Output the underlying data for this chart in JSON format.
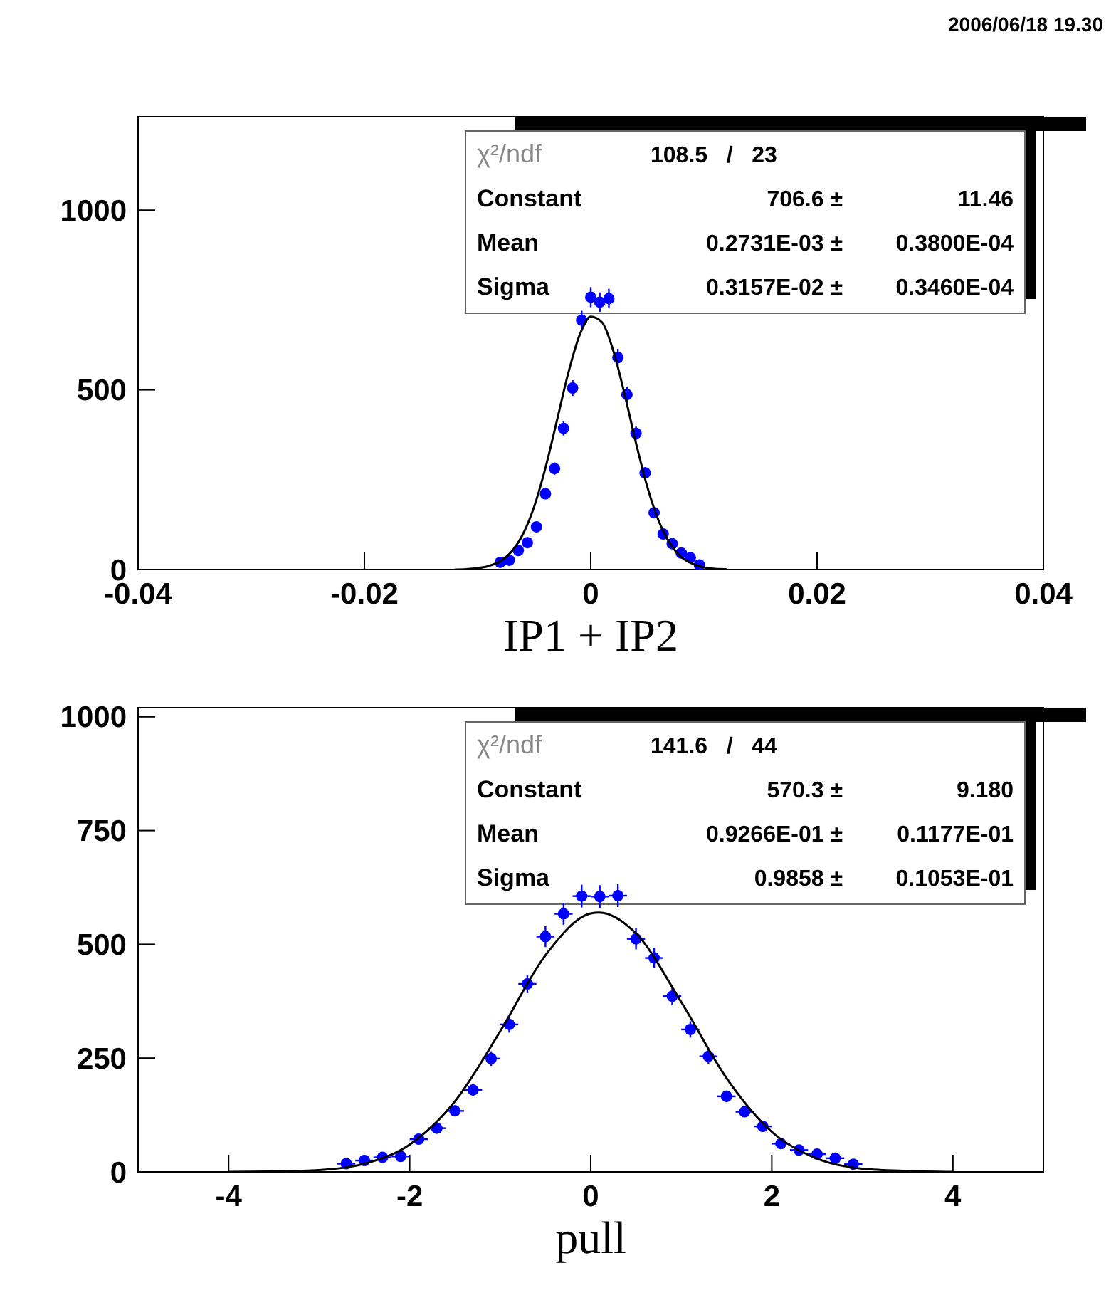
{
  "chart_data": [
    {
      "type": "scatter",
      "xlabel": "IP1 + IP2",
      "annotations": [
        "2006/06/18  19.30",
        "χ²/ndf",
        "108.5   /   23",
        "Constant",
        "706.6 ±",
        "11.46",
        "Mean",
        "0.2731E-03 ±",
        "0.3800E-04",
        "Sigma",
        "0.3157E-02 ±",
        "0.3460E-04"
      ],
      "xlim": [
        -0.04,
        0.04
      ],
      "xticks": [
        -0.04,
        -0.02,
        0,
        0.02,
        0.04
      ],
      "ylim": [
        0,
        1260
      ],
      "yticks": [
        0,
        500,
        1000
      ],
      "grid": false,
      "line_style": "solid",
      "series": [
        {
          "color": "#0000ff",
          "marker": "circle",
          "x": [
            -0.008,
            -0.0072,
            -0.0064,
            -0.0056,
            -0.0048,
            -0.004,
            -0.0032,
            -0.0024,
            -0.0016,
            -0.0008,
            0,
            0.0008,
            0.0016,
            0.0024,
            0.0032,
            0.004,
            0.0048,
            0.0056,
            0.0064,
            0.0072,
            0.008,
            0.0088,
            0.0096
          ],
          "values": [
            20,
            26,
            53,
            75,
            119,
            211,
            281,
            393,
            505,
            694,
            758,
            744,
            754,
            590,
            487,
            379,
            269,
            158,
            99,
            72,
            46,
            33,
            13
          ],
          "errors": [
            4,
            5,
            7,
            9,
            11,
            15,
            17,
            20,
            22,
            26,
            28,
            27,
            27,
            24,
            22,
            19,
            16,
            13,
            10,
            8,
            7,
            6,
            4
          ],
          "xerrors": [
            0.0004,
            0.0004,
            0.0004,
            0.0004,
            0.0004,
            0.0004,
            0.0004,
            0.0004,
            0.0004,
            0.0004,
            0.0004,
            0.0004,
            0.0004,
            0.0004,
            0.0004,
            0.0004,
            0.0004,
            0.0004,
            0.0004,
            0.0004,
            0.0004,
            0.0004,
            0.0004
          ]
        },
        {
          "type": "line",
          "color": "#000000",
          "marker": "none",
          "x": [
            -0.012,
            -0.011,
            -0.01,
            -0.009,
            -0.008,
            -0.007,
            -0.006,
            -0.005,
            -0.004,
            -0.003,
            -0.002,
            -0.001,
            0,
            0.001,
            0.002,
            0.003,
            0.004,
            0.005,
            0.006,
            0.007,
            0.008,
            0.009,
            0.01,
            0.011,
            0.012
          ],
          "values": [
            0,
            1,
            4,
            10,
            23,
            50,
            98,
            175,
            283,
            413,
            545,
            651,
            704,
            688,
            608,
            487,
            352,
            230,
            136,
            73,
            35,
            16,
            6,
            2,
            1
          ]
        }
      ]
    },
    {
      "type": "scatter",
      "xlabel": "pull",
      "annotations": [
        "χ²/ndf",
        "141.6   /   44",
        "Constant",
        "570.3 ±",
        "9.180",
        "Mean",
        "0.9266E-01 ±",
        "0.1177E-01",
        "Sigma",
        "0.9858 ±",
        "0.1053E-01"
      ],
      "xlim": [
        -5,
        5
      ],
      "xticks": [
        -4,
        -2,
        0,
        2,
        4
      ],
      "ylim": [
        0,
        1020
      ],
      "yticks": [
        0,
        250,
        500,
        750,
        1000
      ],
      "grid": false,
      "line_style": "solid",
      "series": [
        {
          "color": "#0000ff",
          "marker": "circle",
          "x": [
            -2.7,
            -2.5,
            -2.3,
            -2.1,
            -1.9,
            -1.7,
            -1.5,
            -1.3,
            -1.1,
            -0.9,
            -0.7,
            -0.5,
            -0.3,
            -0.1,
            0.1,
            0.3,
            0.5,
            0.7,
            0.9,
            1.1,
            1.3,
            1.5,
            1.7,
            1.9,
            2.1,
            2.3,
            2.5,
            2.7,
            2.9
          ],
          "values": [
            18,
            25,
            32,
            34,
            72,
            96,
            134,
            180,
            249,
            324,
            413,
            517,
            567,
            606,
            605,
            607,
            512,
            470,
            386,
            313,
            254,
            166,
            132,
            100,
            62,
            48,
            39,
            30,
            17
          ],
          "errors": [
            4,
            5,
            6,
            6,
            8,
            10,
            12,
            13,
            16,
            18,
            20,
            23,
            24,
            25,
            25,
            25,
            23,
            22,
            20,
            18,
            16,
            13,
            11,
            10,
            8,
            7,
            6,
            5,
            4
          ],
          "xerrors": [
            0.1,
            0.1,
            0.1,
            0.1,
            0.1,
            0.1,
            0.1,
            0.1,
            0.1,
            0.1,
            0.1,
            0.1,
            0.1,
            0.1,
            0.1,
            0.1,
            0.1,
            0.1,
            0.1,
            0.1,
            0.1,
            0.1,
            0.1,
            0.1,
            0.1,
            0.1,
            0.1,
            0.1,
            0.1
          ]
        },
        {
          "type": "line",
          "color": "#000000",
          "marker": "none",
          "x": [
            -4,
            -3.5,
            -3,
            -2.5,
            -2,
            -1.5,
            -1,
            -0.5,
            0,
            0.0927,
            0.5,
            1,
            1.5,
            2,
            2.5,
            3,
            3.5,
            4
          ],
          "values": [
            0,
            1,
            4,
            18,
            60,
            155,
            309,
            476,
            568,
            570,
            524,
            373,
            206,
            88,
            29,
            7,
            2,
            0
          ]
        }
      ]
    }
  ]
}
